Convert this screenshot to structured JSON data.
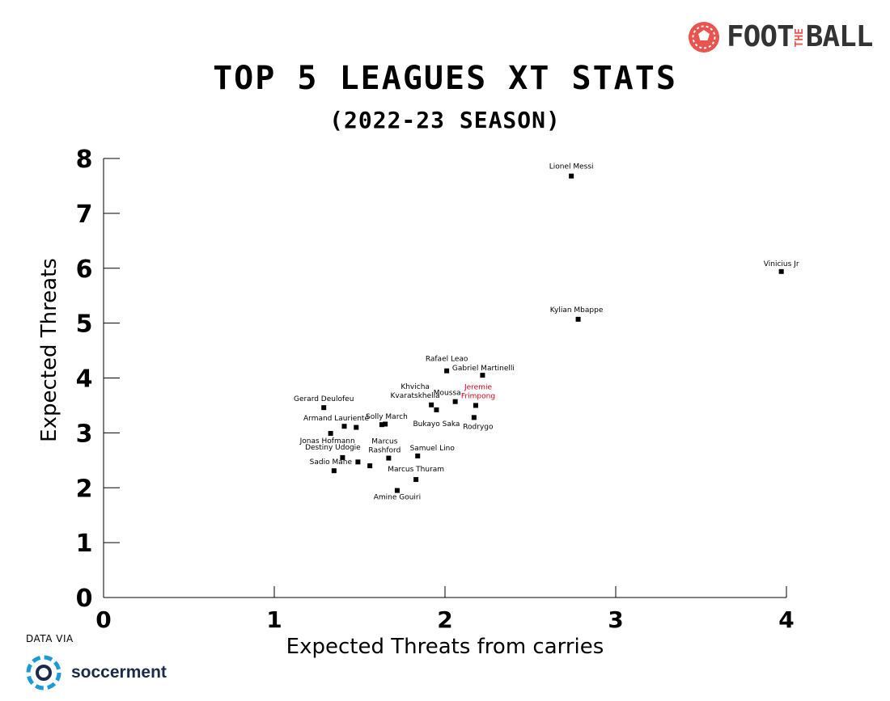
{
  "brand": {
    "name_left": "FOOT",
    "name_mid": "THE",
    "name_right": "BALL"
  },
  "source": {
    "prefix": "DATA VIA",
    "name": "soccerment"
  },
  "colors": {
    "point": "#000000",
    "highlight": "#d0021b",
    "brand": "#e8554e",
    "source": "#1c9ad6"
  },
  "chart_data": {
    "type": "scatter",
    "title": "TOP 5 LEAGUES XT STATS",
    "subtitle": "(2022-23 SEASON)",
    "xlabel": "Expected Threats from carries",
    "ylabel": "Expected Threats",
    "xlim": [
      0,
      4
    ],
    "ylim": [
      0,
      8
    ],
    "xticks": [
      0,
      1,
      2,
      3,
      4
    ],
    "yticks": [
      0,
      1,
      2,
      3,
      4,
      5,
      6,
      7,
      8
    ],
    "grid": false,
    "points": [
      {
        "label": "Lionel Messi",
        "x": 2.74,
        "y": 7.68
      },
      {
        "label": "Vinicius Jr",
        "x": 3.97,
        "y": 5.94
      },
      {
        "label": "Kylian Mbappe",
        "x": 2.78,
        "y": 5.07
      },
      {
        "label": "Rafael Leao",
        "x": 2.01,
        "y": 4.13
      },
      {
        "label": "Gabriel Martinelli",
        "x": 2.22,
        "y": 4.05
      },
      {
        "label": "Jeremie Frimpong",
        "x": 2.18,
        "y": 3.5,
        "highlight": true
      },
      {
        "label": "Moussa",
        "x": 2.06,
        "y": 3.57
      },
      {
        "label": "Khvicha Kvaratskhelia",
        "x": 1.92,
        "y": 3.51
      },
      {
        "label": "Bukayo Saka",
        "x": 1.95,
        "y": 3.42
      },
      {
        "label": "Rodrygo",
        "x": 2.17,
        "y": 3.28
      },
      {
        "label": "Gerard Deulofeu",
        "x": 1.29,
        "y": 3.46
      },
      {
        "label": "Armand Laurienté",
        "x": 1.41,
        "y": 3.12
      },
      {
        "label": "Solly March",
        "x": 1.63,
        "y": 3.15
      },
      {
        "label": "Jonas Hofmann",
        "x": 1.33,
        "y": 2.99
      },
      {
        "label": "Destiny Udogie",
        "x": 1.4,
        "y": 2.55
      },
      {
        "label": "Marcus Rashford",
        "x": 1.67,
        "y": 2.54
      },
      {
        "label": "Samuel Lino",
        "x": 1.84,
        "y": 2.58
      },
      {
        "label": "Sadio Mane",
        "x": 1.35,
        "y": 2.31
      },
      {
        "label": "Marcus Thuram",
        "x": 1.83,
        "y": 2.15
      },
      {
        "label": "Amine Gouiri",
        "x": 1.72,
        "y": 1.95
      }
    ],
    "unlabeled_points": [
      {
        "x": 1.48,
        "y": 3.1
      },
      {
        "x": 1.65,
        "y": 3.16
      },
      {
        "x": 1.49,
        "y": 2.47
      },
      {
        "x": 1.56,
        "y": 2.4
      }
    ]
  }
}
